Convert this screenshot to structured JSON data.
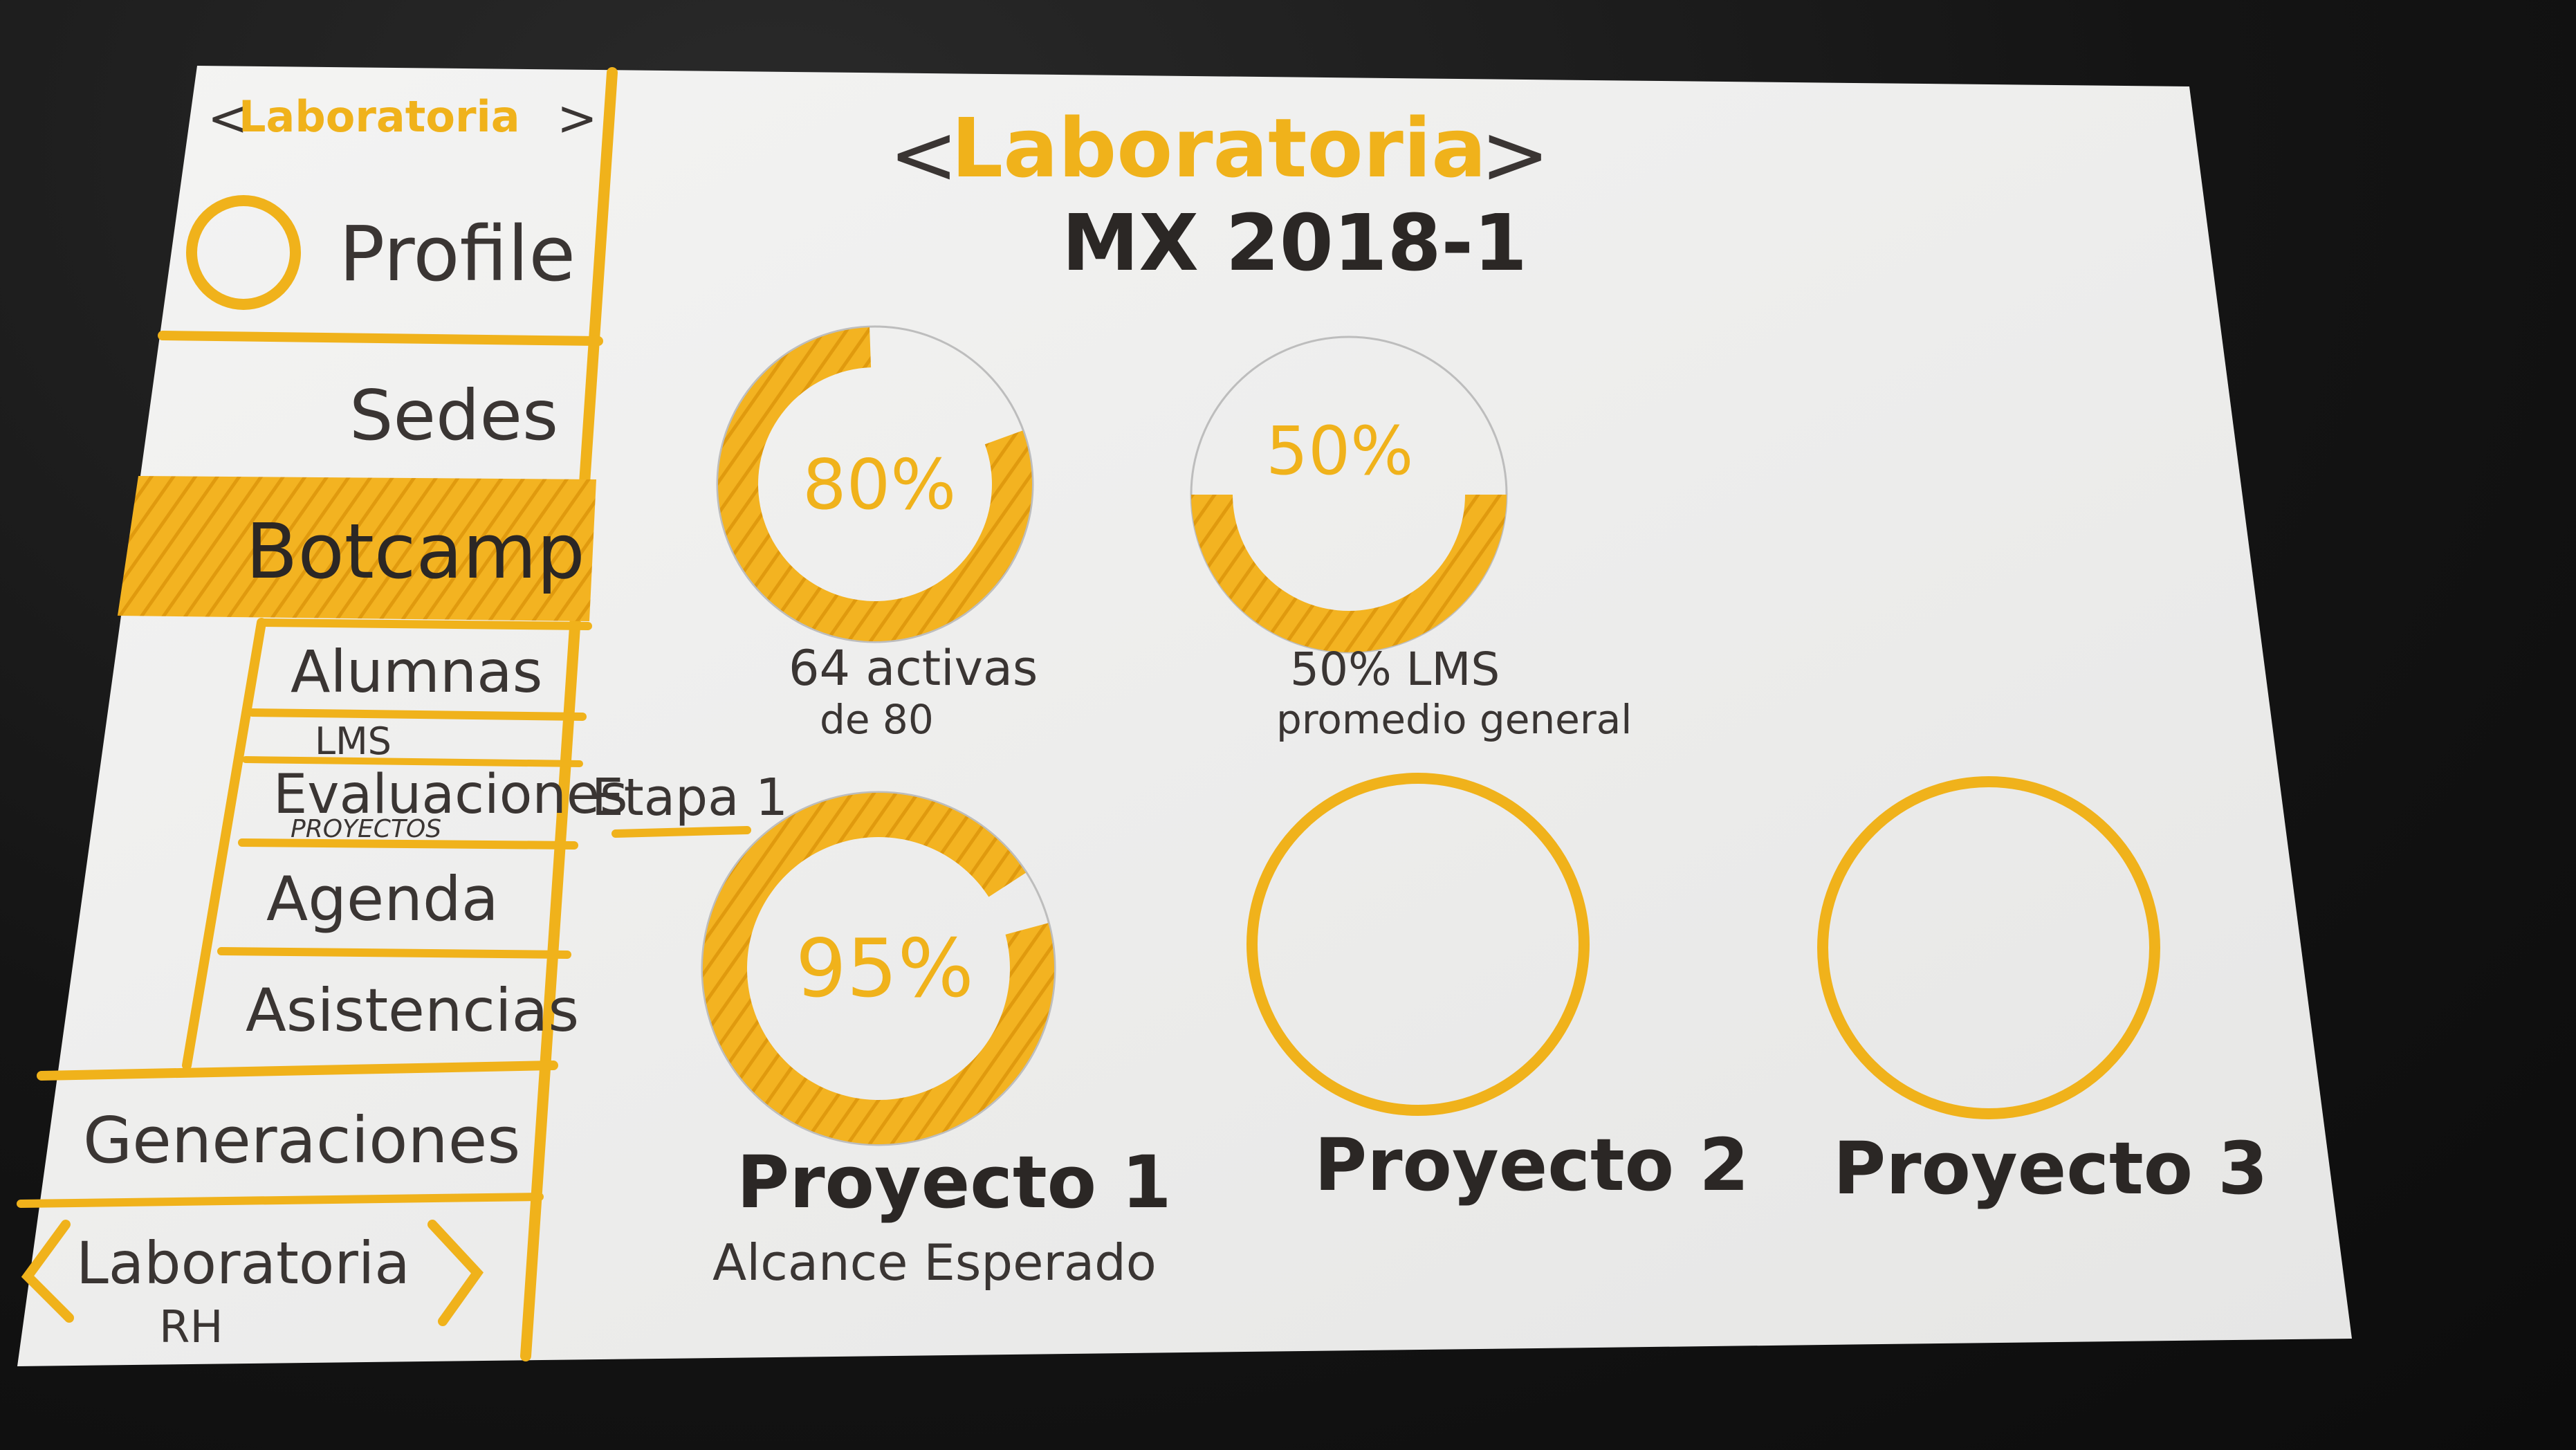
{
  "sidebar": {
    "logo": "<Laboratoria>",
    "profile_label": "Profile",
    "items": {
      "sedes": "Sedes",
      "bootcamp": "Botcamp",
      "alumnas": "Alumnas",
      "lms": "LMS",
      "evaluaciones": "Evaluaciones",
      "proyectos": "PROYECTOS",
      "agenda": "Agenda",
      "asistencias": "Asistencias",
      "generaciones": "Generaciones"
    },
    "footer": {
      "title": "Laboratoria",
      "subtitle": "RH"
    },
    "etapa_note": "Etapa 1"
  },
  "header": {
    "brand": "Laboratoria",
    "generation": "MX 2018-1"
  },
  "metrics": [
    {
      "id": "activas",
      "label": "80%",
      "percent": 80,
      "caption_line1": "64 activas",
      "caption_line2": "de 80"
    },
    {
      "id": "lms",
      "label": "50%",
      "percent": 50,
      "caption_line1": "50% LMS",
      "caption_line2": "promedio general"
    }
  ],
  "projects": [
    {
      "id": "p1",
      "label": "95%",
      "percent": 95,
      "name": "Proyecto 1",
      "caption": "Alcance Esperado"
    },
    {
      "id": "p2",
      "name": "Proyecto 2"
    },
    {
      "id": "p3",
      "name": "Proyecto 3"
    }
  ],
  "colors": {
    "marker_yellow": "#f0b21b",
    "ink": "#3a3533",
    "paper": "#efefee"
  }
}
